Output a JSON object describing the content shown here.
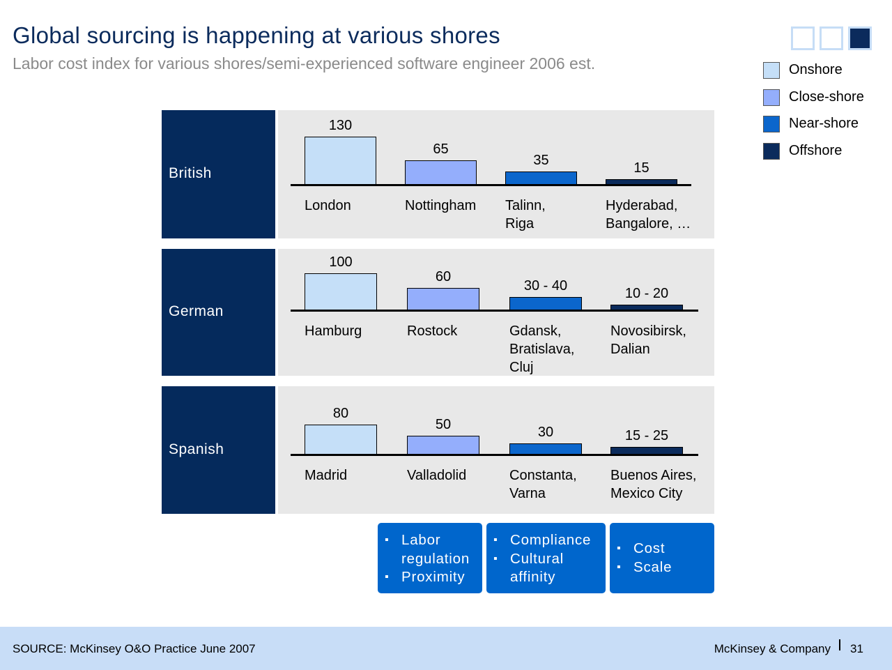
{
  "title": "Global sourcing is happening at various shores",
  "subtitle": "Labor cost index for various shores/semi-experienced software engineer 2006 est.",
  "colors": {
    "onshore": "#c5dff8",
    "close_shore": "#94aefc",
    "near_shore": "#0b66cc",
    "offshore": "#0b2b5c",
    "label_panel": "#052a5c",
    "factor_box": "#0066cc"
  },
  "legend": [
    {
      "label": "Onshore",
      "color": "#c5dff8"
    },
    {
      "label": "Close-shore",
      "color": "#94aefc"
    },
    {
      "label": "Near-shore",
      "color": "#0b66cc"
    },
    {
      "label": "Offshore",
      "color": "#0b2b5c"
    }
  ],
  "chart_data": {
    "type": "bar",
    "series_names": [
      "Onshore",
      "Close-shore",
      "Near-shore",
      "Offshore"
    ],
    "groups": [
      {
        "name": "British",
        "bars": [
          {
            "label": "130",
            "value": 130,
            "city": "London"
          },
          {
            "label": "65",
            "value": 65,
            "city": "Nottingham"
          },
          {
            "label": "35",
            "value": 35,
            "city": "Talinn,\nRiga"
          },
          {
            "label": "15",
            "value": 15,
            "city": "Hyderabad,\nBangalore, …"
          }
        ]
      },
      {
        "name": "German",
        "bars": [
          {
            "label": "100",
            "value": 100,
            "city": "Hamburg"
          },
          {
            "label": "60",
            "value": 60,
            "city": "Rostock"
          },
          {
            "label": "30 - 40",
            "value": 35,
            "city": "Gdansk,\nBratislava,\nCluj"
          },
          {
            "label": "10 - 20",
            "value": 15,
            "city": "Novosibirsk,\nDalian"
          }
        ]
      },
      {
        "name": "Spanish",
        "bars": [
          {
            "label": "80",
            "value": 80,
            "city": "Madrid"
          },
          {
            "label": "50",
            "value": 50,
            "city": "Valladolid"
          },
          {
            "label": "30",
            "value": 30,
            "city": "Constanta,\nVarna"
          },
          {
            "label": "15 - 25",
            "value": 20,
            "city": "Buenos Aires,\nMexico City"
          }
        ]
      }
    ]
  },
  "factors": [
    {
      "items": [
        "Labor\nregulation",
        "Proximity"
      ]
    },
    {
      "items": [
        "Compliance",
        "Cultural\naffinity"
      ]
    },
    {
      "items": [
        "Cost",
        "Scale"
      ]
    }
  ],
  "footer": {
    "source": "SOURCE: McKinsey O&O Practice June 2007",
    "company": "McKinsey & Company",
    "page": "31"
  }
}
